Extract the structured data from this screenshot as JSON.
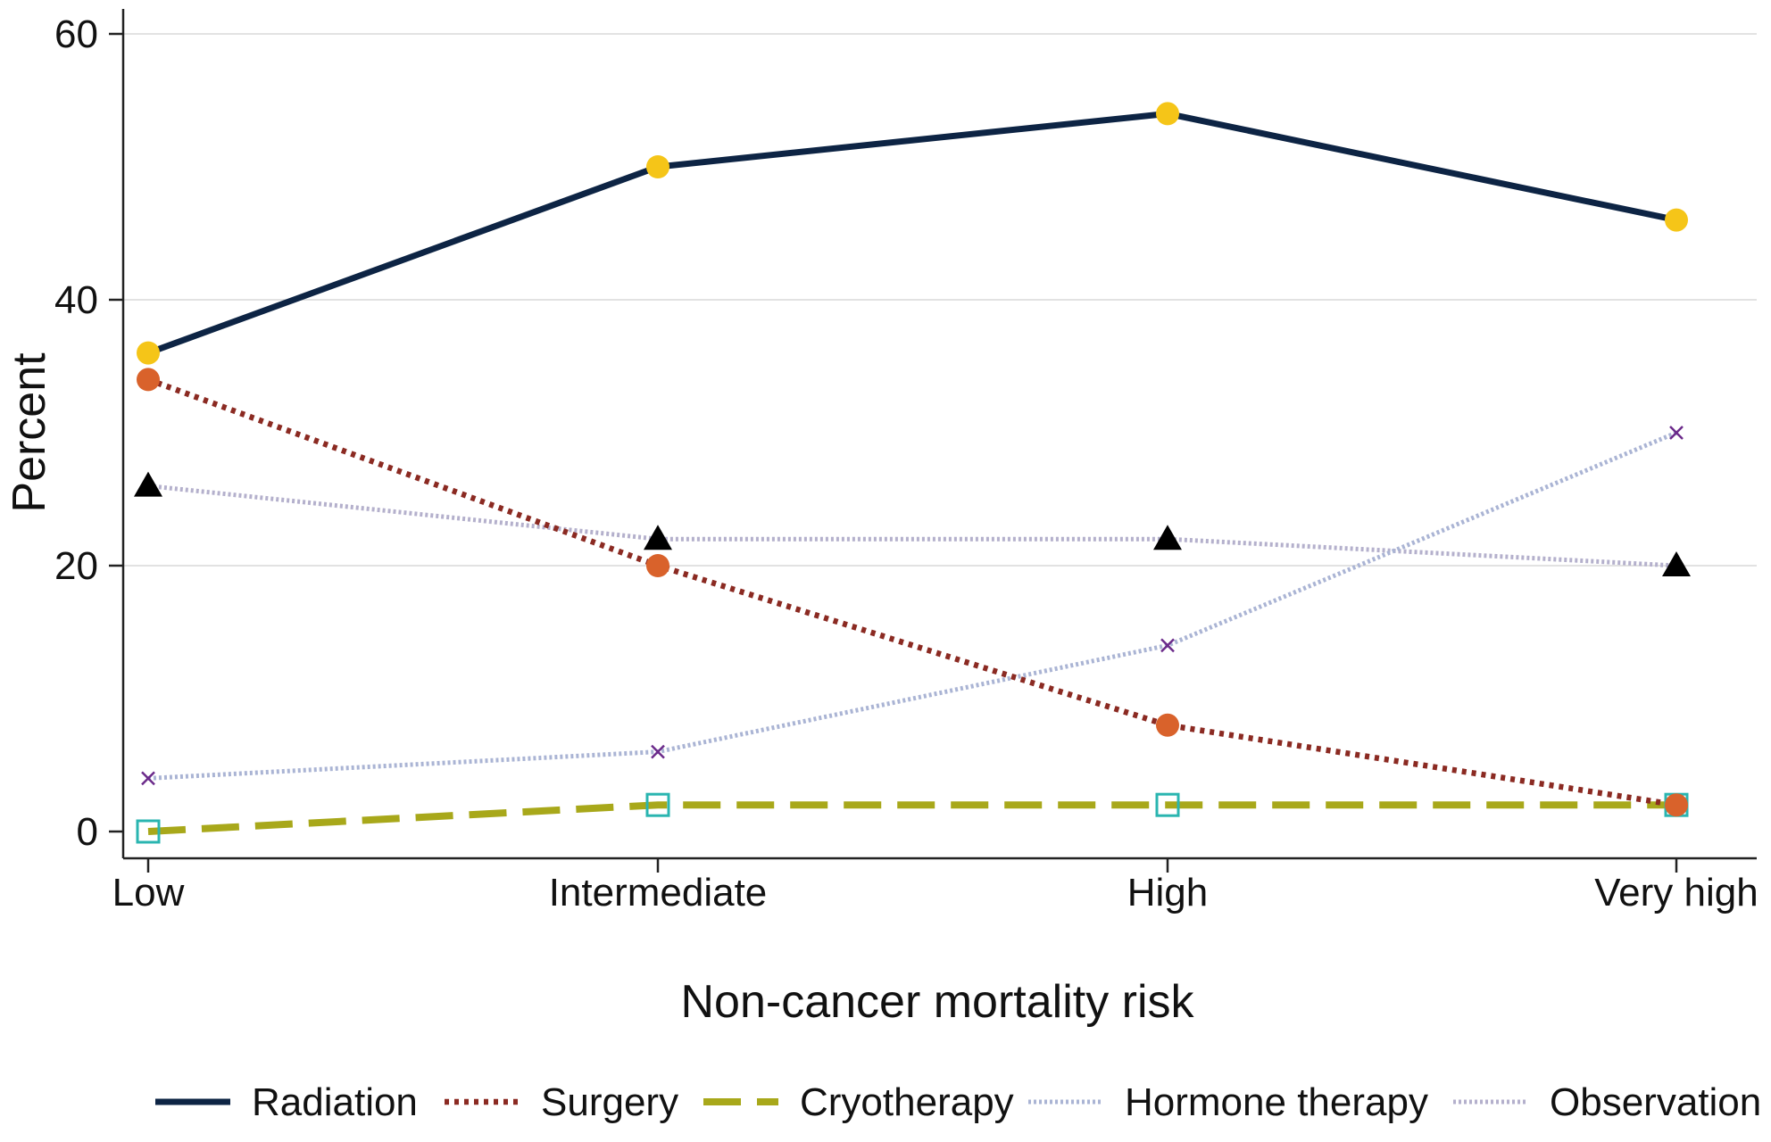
{
  "chart_data": {
    "type": "line",
    "title": "",
    "xlabel": "Non-cancer mortality risk",
    "ylabel": "Percent",
    "categories": [
      "Low",
      "Intermediate",
      "High",
      "Very high"
    ],
    "ylim": [
      0,
      60
    ],
    "yticks": [
      0,
      20,
      40,
      60
    ],
    "grid": true,
    "legend_position": "bottom",
    "series": [
      {
        "name": "Radiation",
        "values": [
          36,
          50,
          54,
          46
        ],
        "color": "#0d2444",
        "marker_color": "#f5c518",
        "marker": "circle",
        "line_style": "solid"
      },
      {
        "name": "Surgery",
        "values": [
          34,
          20,
          8,
          2
        ],
        "color": "#8b2a22",
        "marker_color": "#d9622b",
        "marker": "circle",
        "line_style": "dotted"
      },
      {
        "name": "Cryotherapy",
        "values": [
          0,
          2,
          2,
          2
        ],
        "color": "#a8a81a",
        "marker_color": "#2ab5b0",
        "marker": "hollow-square",
        "line_style": "dashed"
      },
      {
        "name": "Hormone therapy",
        "values": [
          4,
          6,
          14,
          30
        ],
        "color": "#aab4d4",
        "marker_color": "#6b2a8a",
        "marker": "x",
        "line_style": "dotted"
      },
      {
        "name": "Observation",
        "values": [
          26,
          22,
          22,
          20
        ],
        "color": "#b4b0cc",
        "marker_color": "#000000",
        "marker": "triangle",
        "line_style": "dotted"
      }
    ]
  }
}
